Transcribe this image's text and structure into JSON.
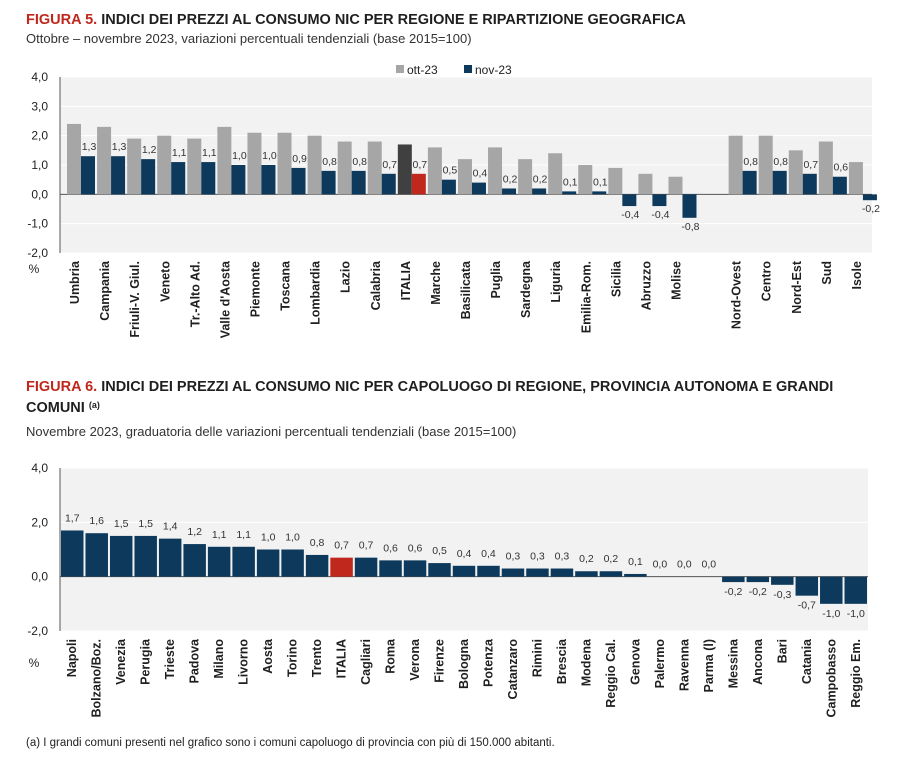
{
  "figure5": {
    "number": "FIGURA 5.",
    "title": "INDICI DEI PREZZI AL CONSUMO NIC PER REGIONE E RIPARTIZIONE GEOGRAFICA",
    "subtitle": "Ottobre – novembre 2023, variazioni percentuali tendenziali (base 2015=100)"
  },
  "figure6": {
    "number": "FIGURA 6.",
    "title": "INDICI DEI PREZZI AL CONSUMO NIC PER CAPOLUOGO DI REGIONE, PROVINCIA AUTONOMA E GRANDI COMUNI",
    "title_note": "(a)",
    "subtitle": "Novembre 2023, graduatoria delle variazioni percentuali tendenziali (base 2015=100)"
  },
  "footnote": "(a)  I grandi comuni presenti nel grafico sono i comuni capoluogo di provincia con più di 150.000 abitanti.",
  "colors": {
    "title_red": "#c0281e",
    "ott_gray": "#a6a6a6",
    "nov_navy": "#0d3a5c",
    "italia_ott": "#404040",
    "italia_nov": "#c0281e",
    "plot_bg": "#f2f2f2"
  },
  "chart_data": [
    {
      "type": "bar",
      "unit_label": "%",
      "ylim": [
        -2.0,
        4.0
      ],
      "yticks": [
        "4,0",
        "3,0",
        "2,0",
        "1,0",
        "0,0",
        "-1,0",
        "-2,0"
      ],
      "grid": true,
      "legend": "top-center",
      "categories": [
        "Umbria",
        "Campania",
        "Friuli-V. Giul.",
        "Veneto",
        "Tr.-Alto Ad.",
        "Valle d'Aosta",
        "Piemonte",
        "Toscana",
        "Lombardia",
        "Lazio",
        "Calabria",
        "ITALIA",
        "Marche",
        "Basilicata",
        "Puglia",
        "Sardegna",
        "Liguria",
        "Emilia-Rom.",
        "Sicilia",
        "Abruzzo",
        "Molise",
        "",
        "Nord-Ovest",
        "Centro",
        "Nord-Est",
        "Sud",
        "Isole"
      ],
      "series": [
        {
          "name": "ott-23",
          "values": [
            2.4,
            2.3,
            1.9,
            2.0,
            1.9,
            2.3,
            2.1,
            2.1,
            2.0,
            1.8,
            1.8,
            1.7,
            1.6,
            1.2,
            1.6,
            1.2,
            1.4,
            1.0,
            0.9,
            0.7,
            0.6,
            null,
            2.0,
            2.0,
            1.5,
            1.8,
            1.1
          ],
          "labels": []
        },
        {
          "name": "nov-23",
          "values": [
            1.3,
            1.3,
            1.2,
            1.1,
            1.1,
            1.0,
            1.0,
            0.9,
            0.8,
            0.8,
            0.7,
            0.7,
            0.5,
            0.4,
            0.2,
            0.2,
            0.1,
            0.1,
            -0.4,
            -0.4,
            -0.8,
            null,
            0.8,
            0.8,
            0.7,
            0.6,
            -0.2
          ],
          "labels": [
            "1,3",
            "1,3",
            "1,2",
            "1,1",
            "1,1",
            "1,0",
            "1,0",
            "0,9",
            "0,8",
            "0,8",
            "0,7",
            "0,7",
            "0,5",
            "0,4",
            "0,2",
            "0,2",
            "0,1",
            "0,1",
            "-0,4",
            "-0,4",
            "-0,8",
            "",
            "0,8",
            "0,8",
            "0,7",
            "0,6",
            "-0,2"
          ]
        }
      ]
    },
    {
      "type": "bar",
      "unit_label": "%",
      "ylim": [
        -2.0,
        4.0
      ],
      "yticks": [
        "4,0",
        "2,0",
        "0,0",
        "-2,0"
      ],
      "grid": true,
      "categories": [
        "Napoli",
        "Bolzano/Boz.",
        "Venezia",
        "Perugia",
        "Trieste",
        "Padova",
        "Milano",
        "Livorno",
        "Aosta",
        "Torino",
        "Trento",
        "ITALIA",
        "Cagliari",
        "Roma",
        "Verona",
        "Firenze",
        "Bologna",
        "Potenza",
        "Catanzaro",
        "Rimini",
        "Brescia",
        "Modena",
        "Reggio Cal.",
        "Genova",
        "Palermo",
        "Ravenna",
        "Parma (l)",
        "Messina",
        "Ancona",
        "Bari",
        "Catania",
        "Campobasso",
        "Reggio Em."
      ],
      "values": [
        1.7,
        1.6,
        1.5,
        1.5,
        1.4,
        1.2,
        1.1,
        1.1,
        1.0,
        1.0,
        0.8,
        0.7,
        0.7,
        0.6,
        0.6,
        0.5,
        0.4,
        0.4,
        0.3,
        0.3,
        0.3,
        0.2,
        0.2,
        0.1,
        0.0,
        0.0,
        0.0,
        -0.2,
        -0.2,
        -0.3,
        -0.7,
        -1.0,
        -1.0
      ],
      "labels": [
        "1,7",
        "1,6",
        "1,5",
        "1,5",
        "1,4",
        "1,2",
        "1,1",
        "1,1",
        "1,0",
        "1,0",
        "0,8",
        "0,7",
        "0,7",
        "0,6",
        "0,6",
        "0,5",
        "0,4",
        "0,4",
        "0,3",
        "0,3",
        "0,3",
        "0,2",
        "0,2",
        "0,1",
        "0,0",
        "0,0",
        "0,0",
        "-0,2",
        "-0,2",
        "-0,3",
        "-0,7",
        "-1,0",
        "-1,0"
      ]
    }
  ]
}
